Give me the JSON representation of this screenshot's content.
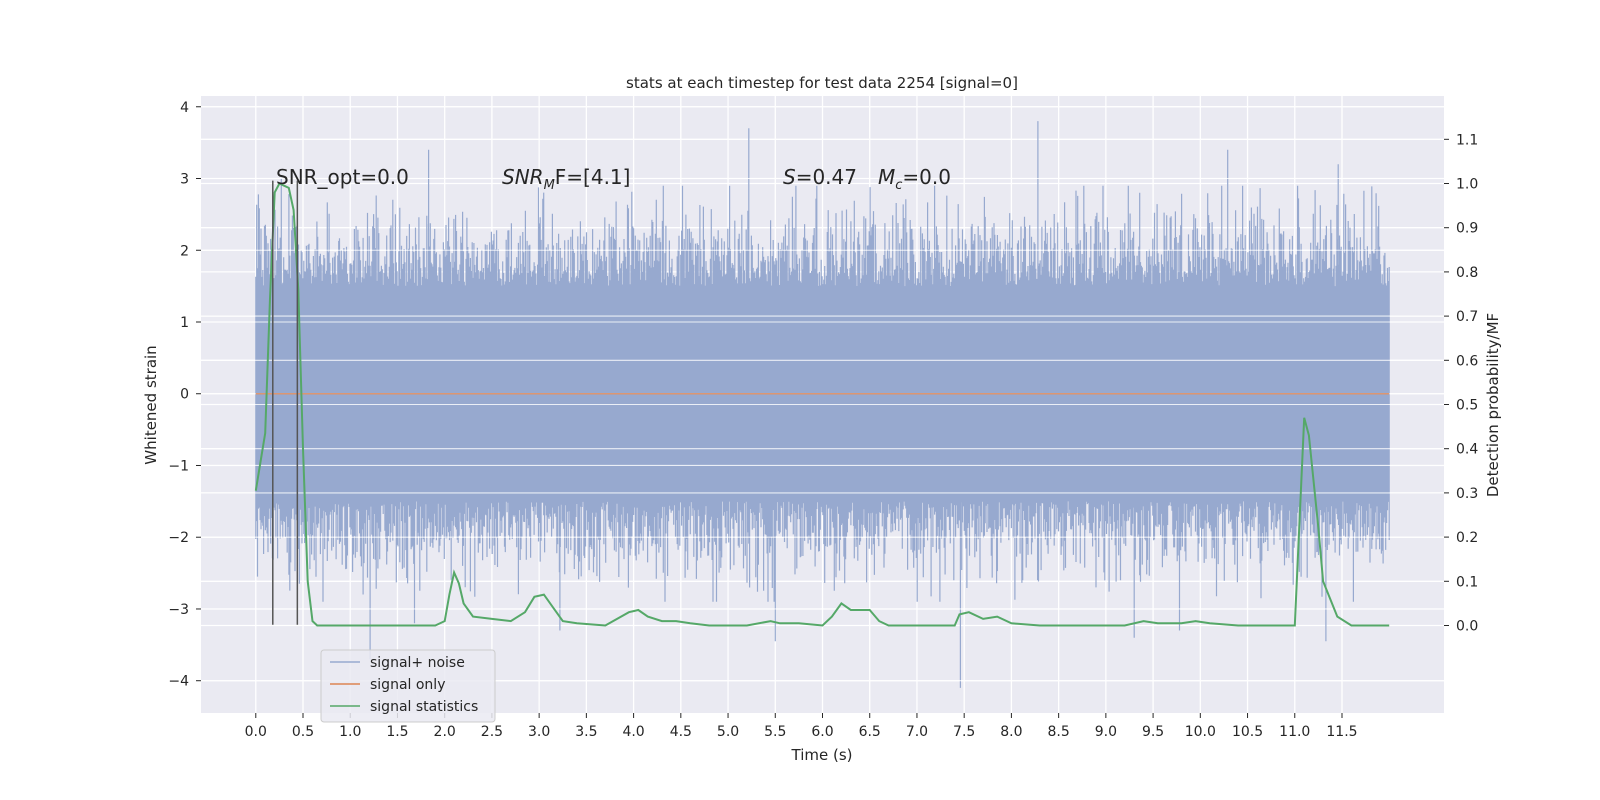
{
  "chart_data": {
    "type": "line",
    "title": "stats at each timestep for test data 2254 [signal=0]",
    "xlabel": "Time (s)",
    "ylabel": "Whitened strain",
    "y2label": "Detection probability/MF",
    "xlim": [
      -0.58,
      12.58
    ],
    "ylim": [
      -4.45,
      4.15
    ],
    "y2lim": [
      -0.198,
      1.198
    ],
    "x_ticks": [
      "0.0",
      "0.5",
      "1.0",
      "1.5",
      "2.0",
      "2.5",
      "3.0",
      "3.5",
      "4.0",
      "4.5",
      "5.0",
      "5.5",
      "6.0",
      "6.5",
      "7.0",
      "7.5",
      "8.0",
      "8.5",
      "9.0",
      "9.5",
      "10.0",
      "10.5",
      "11.0",
      "11.5"
    ],
    "y_ticks": [
      "4",
      "3",
      "2",
      "1",
      "0",
      "−1",
      "−2",
      "−3",
      "−4"
    ],
    "y2_ticks": [
      "1.1",
      "1.0",
      "0.9",
      "0.8",
      "0.7",
      "0.6",
      "0.5",
      "0.4",
      "0.3",
      "0.2",
      "0.1",
      "0.0"
    ],
    "grid": true,
    "legend_position": "lower-left",
    "annotations": {
      "snr_opt": "SNR_opt=0.0",
      "snr_mf_base": "SNR",
      "snr_mf_sub": "M",
      "snr_mf_rest": "F=[4.1]",
      "s_label": "S",
      "s_rest": "=0.47",
      "mc_base": "M",
      "mc_sub": "c",
      "mc_rest": "=0.0"
    },
    "markers_x": [
      0.18,
      0.44
    ],
    "series": [
      {
        "name": "signal+ noise",
        "color": "#97a9cf",
        "x_range": [
          0.0,
          12.0
        ],
        "typical_range": [
          -1.4,
          1.4
        ],
        "spikes": [
          {
            "x": 1.83,
            "y": 3.4
          },
          {
            "x": 5.22,
            "y": 3.7
          },
          {
            "x": 8.28,
            "y": 3.8
          },
          {
            "x": 10.29,
            "y": 3.4
          },
          {
            "x": 11.46,
            "y": 3.2
          },
          {
            "x": 0.27,
            "y": 3.0
          },
          {
            "x": 7.46,
            "y": -4.1
          },
          {
            "x": 1.21,
            "y": -3.7
          },
          {
            "x": 11.33,
            "y": -3.45
          },
          {
            "x": 5.5,
            "y": -3.45
          },
          {
            "x": 9.3,
            "y": -3.4
          },
          {
            "x": 9.78,
            "y": -3.3
          },
          {
            "x": 3.22,
            "y": -3.3
          },
          {
            "x": 1.68,
            "y": -3.2
          }
        ]
      },
      {
        "name": "signal only",
        "color": "#dd8452",
        "x": [
          0.0,
          12.0
        ],
        "y": [
          0.0,
          0.0
        ]
      },
      {
        "name": "signal statistics",
        "color": "#55a868",
        "axis": "right",
        "x": [
          0.0,
          0.1,
          0.15,
          0.2,
          0.25,
          0.3,
          0.35,
          0.4,
          0.45,
          0.5,
          0.55,
          0.6,
          0.65,
          0.8,
          1.0,
          1.5,
          1.8,
          1.9,
          2.0,
          2.05,
          2.1,
          2.15,
          2.2,
          2.3,
          2.5,
          2.7,
          2.85,
          2.95,
          3.05,
          3.15,
          3.25,
          3.4,
          3.7,
          3.95,
          4.05,
          4.15,
          4.3,
          4.45,
          4.6,
          4.8,
          5.2,
          5.45,
          5.55,
          5.75,
          6.0,
          6.1,
          6.2,
          6.3,
          6.5,
          6.6,
          6.7,
          7.0,
          7.4,
          7.45,
          7.55,
          7.7,
          7.85,
          8.0,
          8.3,
          9.2,
          9.4,
          9.55,
          9.8,
          9.95,
          10.1,
          10.4,
          10.9,
          11.0,
          11.1,
          11.15,
          11.25,
          11.3,
          11.45,
          11.6,
          12.0
        ],
        "y": [
          0.305,
          0.435,
          0.74,
          0.98,
          1.0,
          0.995,
          0.99,
          0.94,
          0.76,
          0.4,
          0.1,
          0.01,
          0.0,
          0.0,
          0.0,
          0.0,
          0.0,
          0.0,
          0.01,
          0.07,
          0.12,
          0.095,
          0.05,
          0.02,
          0.015,
          0.01,
          0.03,
          0.065,
          0.07,
          0.04,
          0.01,
          0.005,
          0.0,
          0.03,
          0.035,
          0.02,
          0.01,
          0.01,
          0.005,
          0.0,
          0.0,
          0.01,
          0.005,
          0.005,
          0.0,
          0.02,
          0.05,
          0.035,
          0.035,
          0.01,
          0.0,
          0.0,
          0.0,
          0.025,
          0.03,
          0.015,
          0.02,
          0.005,
          0.0,
          0.0,
          0.01,
          0.005,
          0.005,
          0.01,
          0.005,
          0.0,
          0.0,
          0.0,
          0.47,
          0.43,
          0.22,
          0.1,
          0.02,
          0.0,
          0.0
        ]
      }
    ]
  }
}
